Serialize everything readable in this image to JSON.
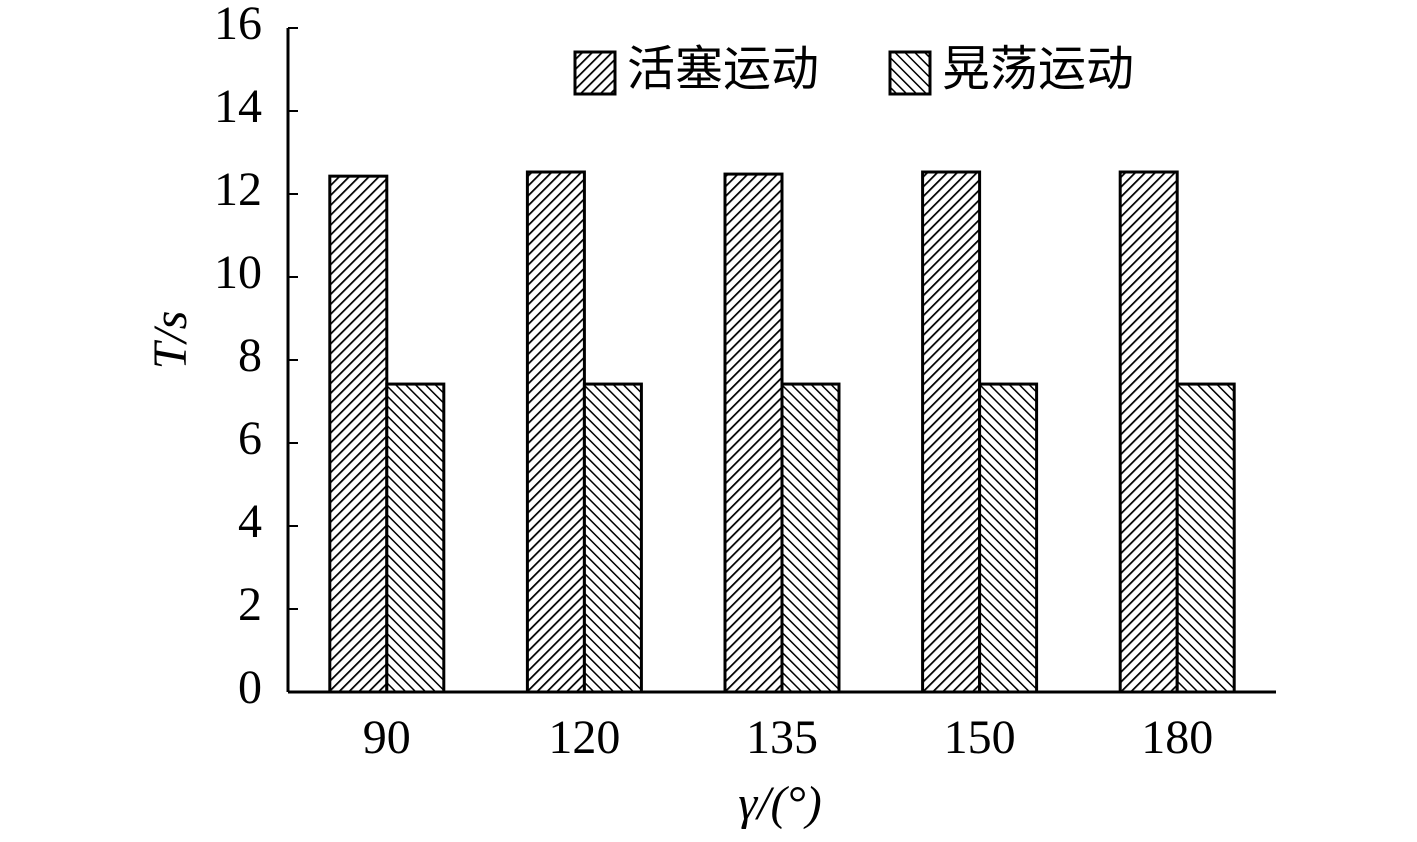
{
  "chart_data": {
    "type": "bar",
    "x_label": "γ/(°)",
    "y_label": "T/s",
    "categories": [
      "90",
      "120",
      "135",
      "150",
      "180"
    ],
    "series": [
      {
        "name": "活塞运动",
        "color": "#000000",
        "values": [
          12.43,
          12.53,
          12.48,
          12.53,
          12.53
        ]
      },
      {
        "name": "晃荡运动",
        "color": "#000000",
        "values": [
          7.42,
          7.42,
          7.42,
          7.42,
          7.42
        ]
      }
    ],
    "ylim": [
      0,
      16
    ],
    "yticks": [
      0,
      2,
      4,
      6,
      8,
      10,
      12,
      14,
      16
    ],
    "legend": "top"
  }
}
